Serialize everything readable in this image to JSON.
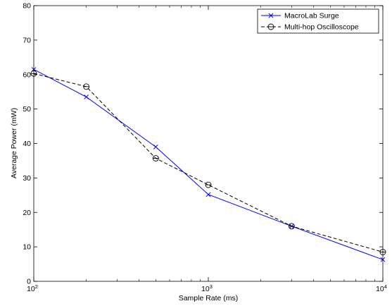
{
  "chart_data": {
    "type": "line",
    "title": "",
    "xlabel": "Sample Rate (ms)",
    "ylabel": "Average Power (mW)",
    "xscale": "log",
    "xlim": [
      100,
      10000
    ],
    "ylim": [
      0,
      80
    ],
    "x_ticks": [
      100,
      1000,
      10000
    ],
    "x_tick_labels": [
      {
        "base": "10",
        "exp": "2"
      },
      {
        "base": "10",
        "exp": "3"
      },
      {
        "base": "10",
        "exp": "4"
      }
    ],
    "y_ticks": [
      0,
      10,
      20,
      30,
      40,
      50,
      60,
      70,
      80
    ],
    "y_tick_labels": [
      "0",
      "10",
      "20",
      "30",
      "40",
      "50",
      "60",
      "70",
      "80"
    ],
    "grid": false,
    "legend_position": "top-right",
    "series": [
      {
        "name": "MacroLab Surge",
        "color": "#0000ff",
        "line_style": "solid",
        "marker": "x",
        "x": [
          100,
          200,
          500,
          1000,
          3000,
          10000
        ],
        "y": [
          61.5,
          53.5,
          39.0,
          25.2,
          16.0,
          6.3
        ]
      },
      {
        "name": "Multi-hop Oscilloscope",
        "color": "#000000",
        "line_style": "dashed",
        "marker": "circle-minus",
        "x": [
          100,
          200,
          500,
          1000,
          3000,
          10000
        ],
        "y": [
          60.3,
          56.5,
          35.7,
          28.0,
          16.0,
          8.5
        ]
      }
    ]
  }
}
